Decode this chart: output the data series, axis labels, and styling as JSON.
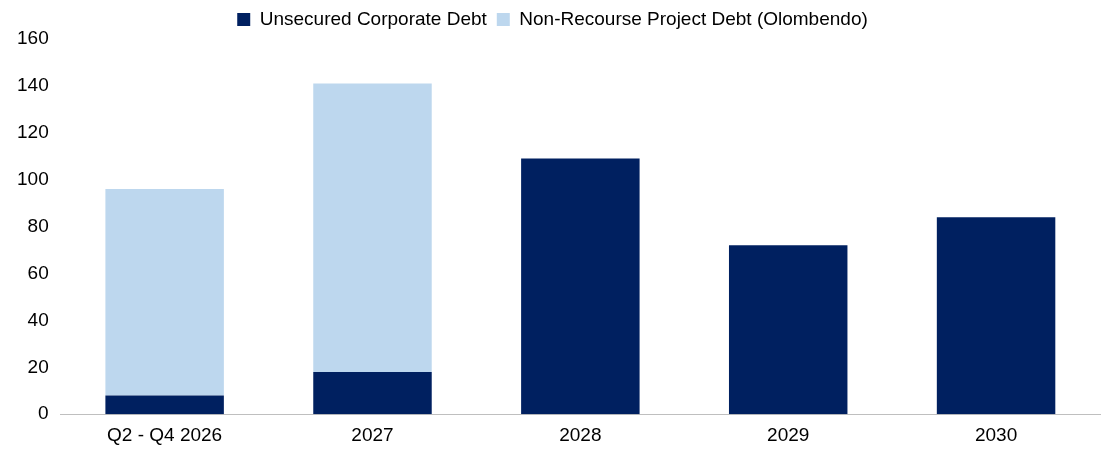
{
  "chart_data": {
    "type": "bar",
    "stacked": true,
    "categories": [
      "Q2 - Q4 2026",
      "2027",
      "2028",
      "2029",
      "2030"
    ],
    "series": [
      {
        "name": "Unsecured Corporate Debt",
        "color": "#002060",
        "values": [
          8,
          18,
          109,
          72,
          84
        ]
      },
      {
        "name": "Non-Recourse Project Debt (Olombendo)",
        "color": "#bdd7ee",
        "values": [
          88,
          123,
          null,
          null,
          null
        ]
      }
    ],
    "ylim": [
      0,
      160
    ],
    "yticks": [
      0,
      20,
      40,
      60,
      80,
      100,
      120,
      140,
      160
    ],
    "grid": false,
    "legend": "top"
  }
}
